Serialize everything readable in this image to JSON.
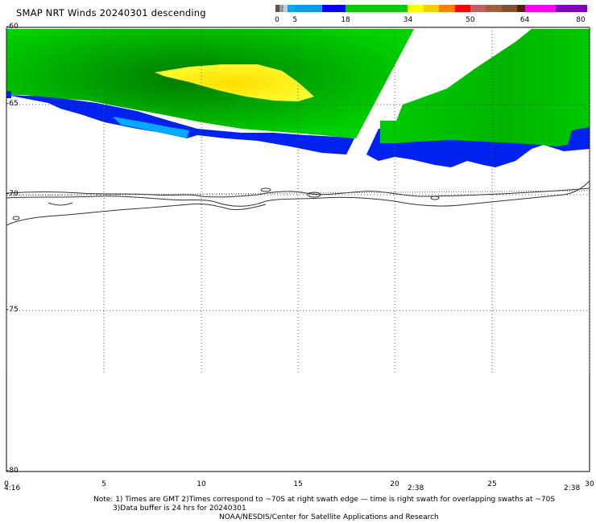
{
  "title": "SMAP NRT Winds  20240301 descending",
  "colorbar": {
    "labels": [
      "0",
      "5",
      "18",
      "34",
      "50",
      "64",
      "80"
    ],
    "segments": [
      {
        "from": 0,
        "to": 1,
        "color": "#555555"
      },
      {
        "from": 1,
        "to": 2,
        "color": "#999999"
      },
      {
        "from": 2,
        "to": 3,
        "color": "#cccccc"
      },
      {
        "from": 3,
        "to": 5,
        "color": "#00aaff"
      },
      {
        "from": 5,
        "to": 12,
        "color": "#009cf0"
      },
      {
        "from": 12,
        "to": 18,
        "color": "#0000ff"
      },
      {
        "from": 18,
        "to": 34,
        "color": "#00cc00"
      },
      {
        "from": 34,
        "to": 38,
        "color": "#ffff00"
      },
      {
        "from": 38,
        "to": 42,
        "color": "#ffcc00"
      },
      {
        "from": 42,
        "to": 46,
        "color": "#ff8000"
      },
      {
        "from": 46,
        "to": 50,
        "color": "#ff0000"
      },
      {
        "from": 50,
        "to": 54,
        "color": "#c06060"
      },
      {
        "from": 54,
        "to": 58,
        "color": "#a06040"
      },
      {
        "from": 58,
        "to": 62,
        "color": "#805030"
      },
      {
        "from": 62,
        "to": 64,
        "color": "#502010"
      },
      {
        "from": 64,
        "to": 72,
        "color": "#ff00ff"
      },
      {
        "from": 72,
        "to": 80,
        "color": "#8000c0"
      }
    ]
  },
  "y_axis": {
    "labels": [
      "-60",
      "-65",
      "-70",
      "-75",
      "-80"
    ]
  },
  "x_axis": {
    "labels": [
      "0",
      "5",
      "10",
      "15",
      "20",
      "25",
      "30"
    ]
  },
  "times": {
    "left": "4:16",
    "mid": "2:38",
    "right": "2:38"
  },
  "notes": {
    "line1": "Note: 1) Times are GMT 2)Times correspond to ~70S at right swath edge — time is right swath for overlapping swaths at ~70S",
    "line2": "3)Data buffer is 24 hrs for 20240301",
    "line3": "NOAA/NESDIS/Center for Satellite Applications and Research"
  },
  "colors": {
    "wind_green": "#00cc00",
    "wind_dark_green": "#008800",
    "wind_blue": "#0022ee",
    "wind_light_blue": "#00aaff",
    "wind_yellow": "#ffee00",
    "coast": "#333333"
  }
}
